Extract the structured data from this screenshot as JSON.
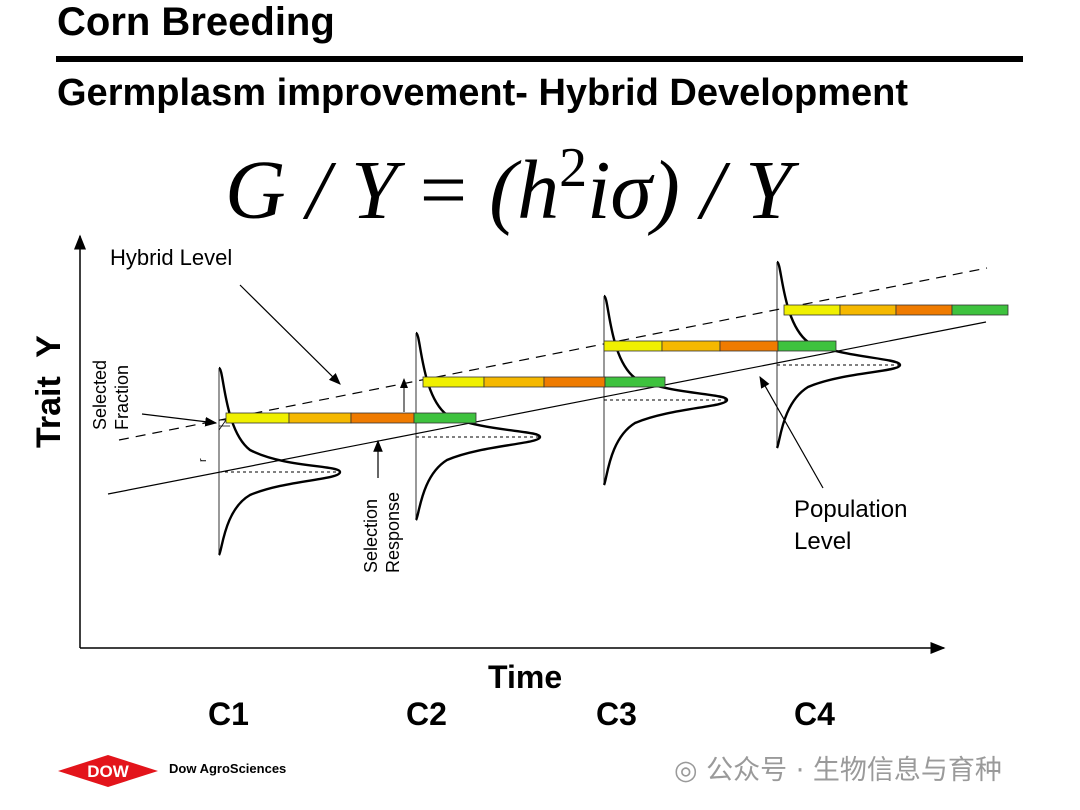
{
  "header": {
    "title": "Corn Breeding",
    "subtitle": "Germplasm improvement- Hybrid Development"
  },
  "formula": {
    "lhs": "G / Y",
    "eq": "=",
    "rhs_open": "(h",
    "exp": "2",
    "rhs_rest": "iσ) / Y"
  },
  "diagram": {
    "y_axis_label": "Trait  Y",
    "x_axis_label": "Time",
    "cycles": [
      "C1",
      "C2",
      "C3",
      "C4"
    ],
    "annotations": {
      "hybrid_level": "Hybrid Level",
      "selected_fraction_1": "Selected",
      "selected_fraction_2": "Fraction",
      "selection_response_1": "Selection",
      "selection_response_2": "Response",
      "population_level_1": "Population",
      "population_level_2": "Level",
      "r_label": "r"
    },
    "bar_colors": [
      "#f0f000",
      "#f5b800",
      "#ef7b00",
      "#3ec23e"
    ]
  },
  "footer": {
    "logo_text": "DOW",
    "brand": "Dow AgroSciences",
    "watermark": "公众号 · 生物信息与育种",
    "logo_color": "#e3141b"
  }
}
